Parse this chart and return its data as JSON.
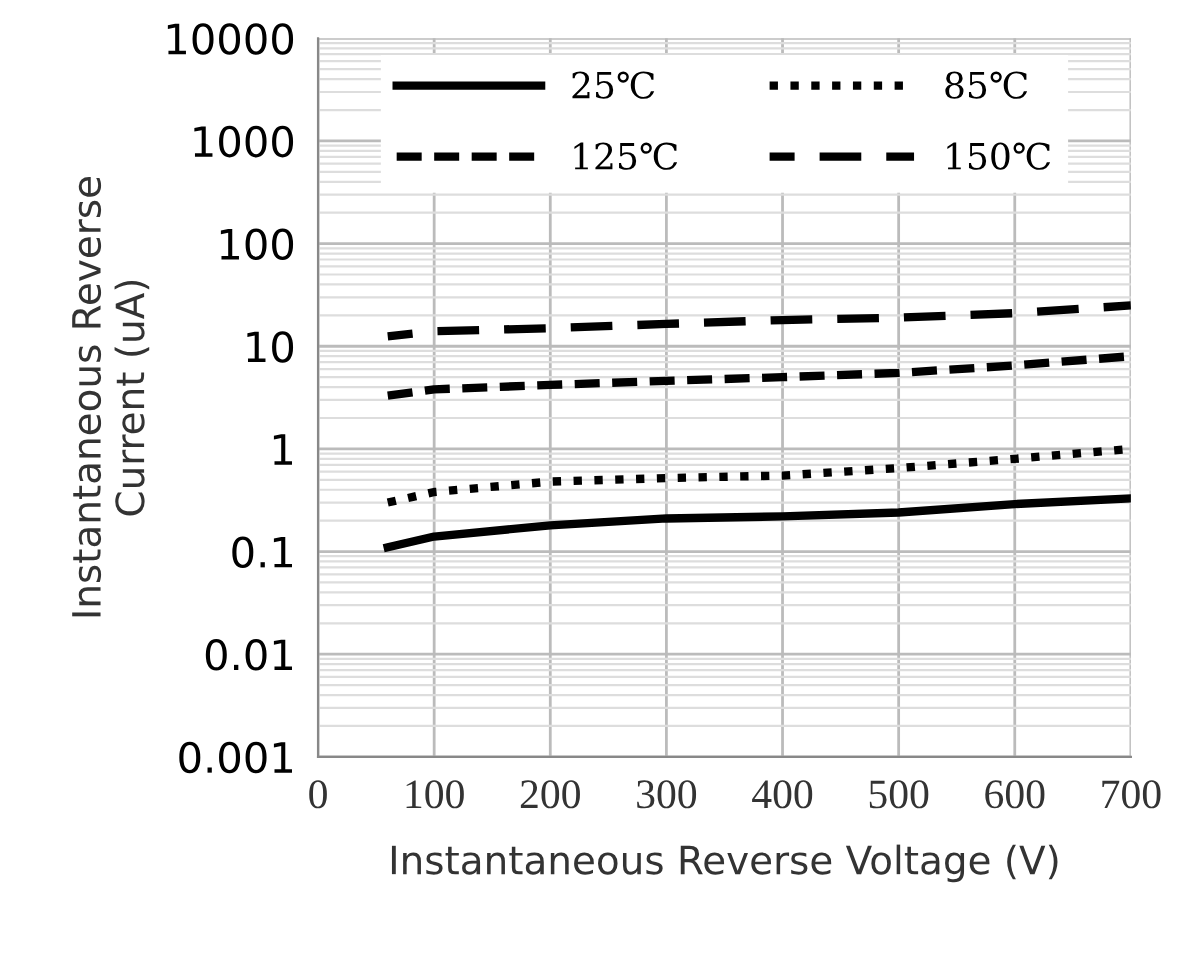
{
  "chart_data": {
    "type": "line",
    "xlabel": "Instantaneous Reverse Voltage (V)",
    "ylabel": "Instantaneous Reverse\nCurrent (uA)",
    "log": "y",
    "xlim": [
      0,
      700
    ],
    "xticks": [
      0,
      100,
      200,
      300,
      400,
      500,
      600,
      700
    ],
    "ylim": [
      0.001,
      10000
    ],
    "yticks": [
      0.001,
      0.01,
      0.1,
      1,
      10,
      100,
      1000,
      10000
    ],
    "grid": true,
    "legend": "top",
    "marker": "none",
    "series": [
      {
        "name": "25℃",
        "color": "#000000",
        "line_style": "solid",
        "x": [
          60,
          100,
          200,
          300,
          400,
          500,
          600,
          700
        ],
        "values": [
          0.11,
          0.14,
          0.18,
          0.21,
          0.22,
          0.24,
          0.29,
          0.33
        ]
      },
      {
        "name": "85℃",
        "color": "#000000",
        "line_style": "dotted",
        "x": [
          60,
          100,
          200,
          300,
          400,
          500,
          600,
          700
        ],
        "values": [
          0.3,
          0.38,
          0.48,
          0.52,
          0.55,
          0.65,
          0.8,
          1.0
        ]
      },
      {
        "name": "125℃",
        "color": "#000000",
        "line_style": "dashed",
        "x": [
          60,
          100,
          200,
          300,
          400,
          500,
          600,
          700
        ],
        "values": [
          3.3,
          3.8,
          4.2,
          4.6,
          5.0,
          5.5,
          6.5,
          8.0
        ]
      },
      {
        "name": "150℃",
        "color": "#000000",
        "line_style": "longdash",
        "x": [
          60,
          100,
          200,
          300,
          400,
          500,
          600,
          700
        ],
        "values": [
          12.5,
          14,
          15,
          16.5,
          18,
          19,
          21,
          25
        ]
      }
    ]
  }
}
